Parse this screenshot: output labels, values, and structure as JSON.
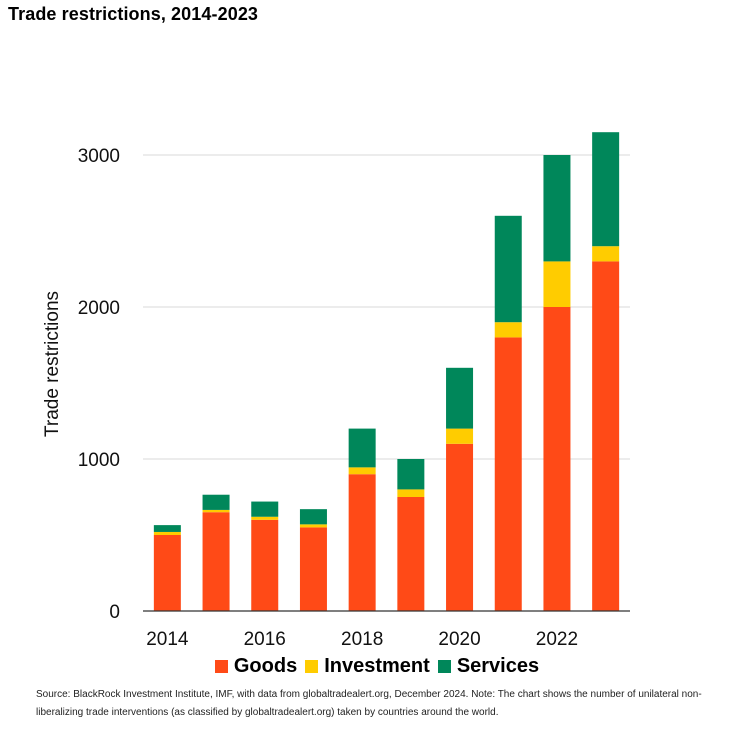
{
  "title": "Trade restrictions, 2014-2023",
  "chart_data": {
    "type": "bar",
    "stacked": true,
    "categories": [
      "2014",
      "2015",
      "2016",
      "2017",
      "2018",
      "2019",
      "2020",
      "2021",
      "2022",
      "2023"
    ],
    "x_tick_labels": [
      "2014",
      "2016",
      "2018",
      "2020",
      "2022"
    ],
    "y_ticks": [
      0,
      1000,
      2000,
      3000
    ],
    "ylim": [
      0,
      3300
    ],
    "ylabel": "Trade restrictions",
    "xlabel": "",
    "grid": true,
    "legend_position": "bottom",
    "series": [
      {
        "name": "Goods",
        "color": "#ff4a17",
        "values": [
          500,
          650,
          600,
          550,
          900,
          750,
          1100,
          1800,
          2000,
          2300
        ]
      },
      {
        "name": "Investment",
        "color": "#ffcc00",
        "values": [
          20,
          15,
          20,
          20,
          45,
          50,
          100,
          100,
          300,
          100
        ]
      },
      {
        "name": "Services",
        "color": "#00875a",
        "values": [
          45,
          100,
          100,
          100,
          255,
          200,
          400,
          700,
          700,
          750
        ]
      }
    ]
  },
  "source": "Source: BlackRock Investment Institute, IMF, with data from globaltradealert.org, December 2024. Note: The chart shows the number of unilateral non-liberalizing trade interventions (as classified by globaltradealert.org) taken by countries around the world."
}
